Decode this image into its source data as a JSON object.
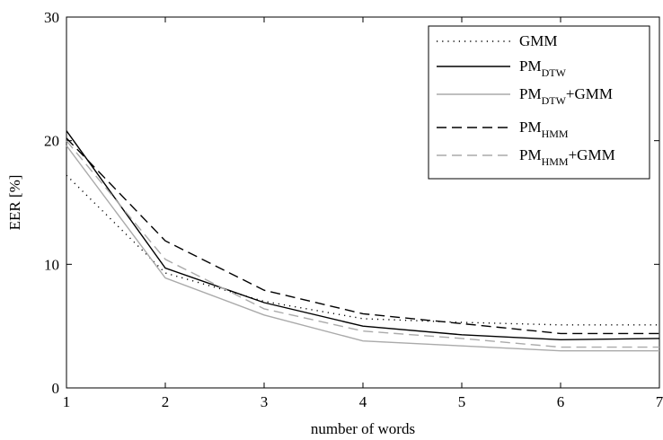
{
  "chart_data": {
    "type": "line",
    "xlabel": "number of words",
    "ylabel": "EER [%]",
    "xlim": [
      1,
      7
    ],
    "ylim": [
      0,
      30
    ],
    "x_ticks": [
      1,
      2,
      3,
      4,
      5,
      6,
      7
    ],
    "y_ticks": [
      0,
      10,
      20,
      30
    ],
    "grid": false,
    "legend_position": "top-right",
    "x": [
      1,
      2,
      3,
      4,
      5,
      6,
      7
    ],
    "series": [
      {
        "name": "GMM",
        "base": "GMM",
        "sub": "",
        "suffix": "",
        "color": "#000000",
        "dash": "dotted",
        "values": [
          17.2,
          9.3,
          7.0,
          5.6,
          5.3,
          5.1,
          5.1
        ]
      },
      {
        "name": "PM_DTW",
        "base": "PM",
        "sub": "DTW",
        "suffix": "",
        "color": "#000000",
        "dash": "solid",
        "values": [
          20.8,
          9.7,
          6.9,
          5.0,
          4.3,
          3.9,
          4.0
        ]
      },
      {
        "name": "PM_DTW+GMM",
        "base": "PM",
        "sub": "DTW",
        "suffix": "+GMM",
        "color": "#aaaaaa",
        "dash": "solid",
        "values": [
          19.6,
          8.9,
          5.9,
          3.8,
          3.4,
          3.0,
          3.0
        ]
      },
      {
        "name": "PM_HMM",
        "base": "PM",
        "sub": "HMM",
        "suffix": "",
        "color": "#000000",
        "dash": "dashed",
        "values": [
          20.2,
          11.9,
          7.9,
          6.0,
          5.2,
          4.4,
          4.4
        ]
      },
      {
        "name": "PM_HMM+GMM",
        "base": "PM",
        "sub": "HMM",
        "suffix": "+GMM",
        "color": "#aaaaaa",
        "dash": "dashed",
        "values": [
          20.0,
          10.4,
          6.4,
          4.6,
          4.0,
          3.3,
          3.3
        ]
      }
    ]
  }
}
